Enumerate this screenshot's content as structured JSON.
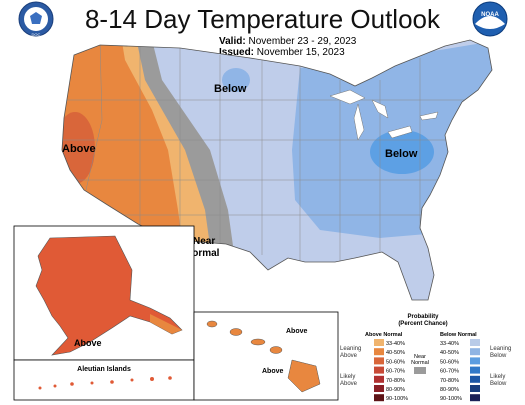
{
  "header": {
    "title": "8-14 Day Temperature Outlook",
    "valid_label": "Valid:",
    "valid_value": "November 23 - 29, 2023",
    "issued_label": "Issued:",
    "issued_value": "November 15, 2023"
  },
  "logos": {
    "left": "DOC",
    "right": "NOAA"
  },
  "map_labels": {
    "west": "Above",
    "north": "Below",
    "east": "Below",
    "near_normal_1": "Near",
    "near_normal_2": "Normal",
    "alaska": "Above",
    "hawaii_1": "Above",
    "hawaii_2": "Above",
    "aleutian": "Aleutian Islands"
  },
  "legend": {
    "title_1": "Probability",
    "title_2": "(Percent Chance)",
    "above_header": "Above Normal",
    "below_header": "Below Normal",
    "near_header_1": "Near",
    "near_header_2": "Normal",
    "leaning_above_1": "Leaning",
    "leaning_above_2": "Above",
    "likely_above_1": "Likely",
    "likely_above_2": "Above",
    "leaning_below_1": "Leaning",
    "leaning_below_2": "Below",
    "likely_below_1": "Likely",
    "likely_below_2": "Below",
    "above_bins": [
      "33-40%",
      "40-50%",
      "50-60%",
      "60-70%",
      "70-80%",
      "80-90%",
      "90-100%"
    ],
    "below_bins": [
      "33-40%",
      "40-50%",
      "50-60%",
      "60-70%",
      "70-80%",
      "80-90%",
      "90-100%"
    ],
    "above_colors": [
      "#f0b46e",
      "#e8873f",
      "#d9663a",
      "#c84a36",
      "#b03030",
      "#8a1f26",
      "#5e1417"
    ],
    "below_colors": [
      "#b9cbe8",
      "#8fb4e3",
      "#5c9de0",
      "#3279c8",
      "#1d57a6",
      "#193d7d",
      "#1b2157"
    ],
    "near_color": "#9b9b9b"
  },
  "colors": {
    "above_33": "#f0b46e",
    "above_40": "#e8873f",
    "above_50": "#d9663a",
    "below_33": "#bfcdea",
    "below_40": "#90b5e6",
    "below_50": "#5da0e4",
    "near": "#9b9b9b"
  }
}
